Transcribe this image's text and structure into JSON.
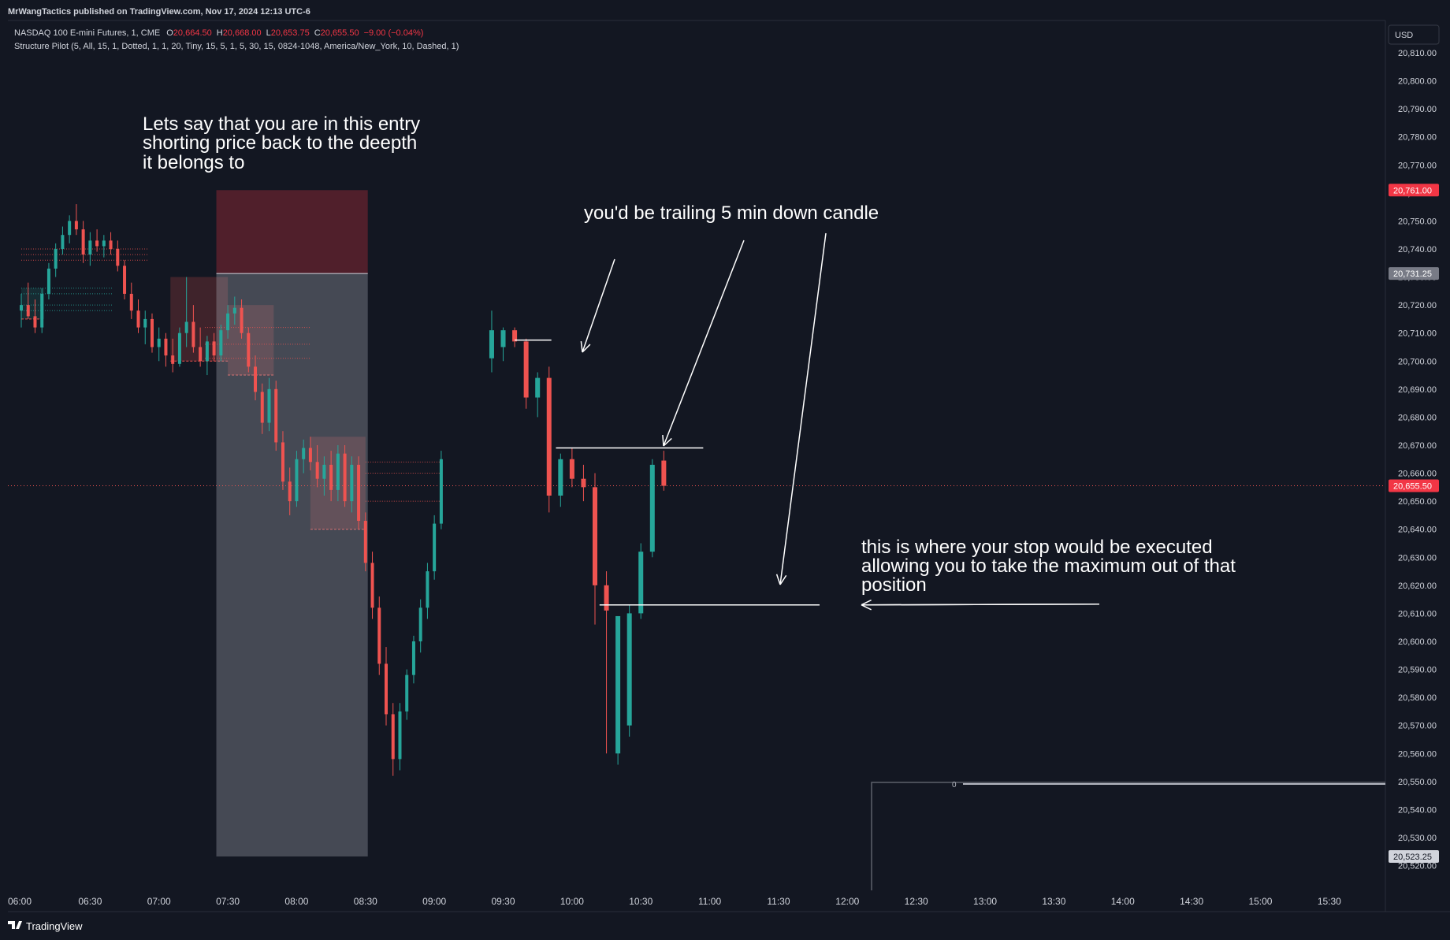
{
  "header": {
    "published": "MrWangTactics published on TradingView.com, Nov 17, 2024 12:13 UTC-6",
    "symbol": "NASDAQ 100 E-mini Futures, 1, CME",
    "o_label": "O",
    "o_value": "20,664.50",
    "h_label": "H",
    "h_value": "20,668.00",
    "l_label": "L",
    "l_value": "20,653.75",
    "c_label": "C",
    "c_value": "20,655.50",
    "change": "−9.00 (−0.04%)",
    "indicator": "Structure Pilot (5, All, 15, 1, Dotted, 1, 1, 20, Tiny, 15, 5, 1, 5, 30, 15, 0824-1048, America/New_York, 10, Dashed, 1)"
  },
  "currency": "USD",
  "footer": {
    "brand": "TradingView"
  },
  "colors": {
    "background": "#131722",
    "up": "#26a69a",
    "down": "#ef5350",
    "price_badge": "#f23645",
    "stop_badge": "#787b86",
    "annotation": "#ffffff"
  },
  "annotations": {
    "entry": [
      "Lets say that you are in this entry",
      "shorting price back to the deepth",
      "it belongs to"
    ],
    "trailing": "you'd be trailing 5 min down candle",
    "stop": [
      "this is where your stop would be executed",
      "allowing you to take the maximum out of that",
      "position"
    ]
  },
  "chart_data": {
    "type": "candlestick",
    "symbol": "NASDAQ 100 E-mini Futures",
    "timeframe": "1",
    "exchange": "CME",
    "y_axis": {
      "side": "right",
      "range": [
        20517,
        20815
      ],
      "tick_labels": [
        "20,810.00",
        "20,800.00",
        "20,790.00",
        "20,780.00",
        "20,770.00",
        "20,760.00",
        "20,750.00",
        "20,740.00",
        "20,730.00",
        "20,720.00",
        "20,710.00",
        "20,700.00",
        "20,690.00",
        "20,680.00",
        "20,670.00",
        "20,660.00",
        "20,650.00",
        "20,640.00",
        "20,630.00",
        "20,620.00",
        "20,610.00",
        "20,600.00",
        "20,590.00",
        "20,580.00",
        "20,570.00",
        "20,560.00",
        "20,550.00",
        "20,540.00",
        "20,530.00",
        "20,520.00"
      ]
    },
    "x_axis": {
      "tick_labels": [
        "06:00",
        "06:30",
        "07:00",
        "07:30",
        "08:00",
        "08:30",
        "09:00",
        "09:30",
        "10:00",
        "10:30",
        "11:00",
        "11:30",
        "12:00",
        "12:30",
        "13:00",
        "13:30",
        "14:00",
        "14:30",
        "15:00",
        "15:30"
      ]
    },
    "price_labels": [
      {
        "value": "20,761.00",
        "kind": "high"
      },
      {
        "value": "20,731.25",
        "kind": "stop"
      },
      {
        "value": "20,655.50",
        "kind": "last"
      },
      {
        "value": "20,523.25",
        "kind": "low"
      }
    ],
    "last_price": 20655.5,
    "short_position": {
      "entry": 20731.25,
      "stop": 20761.0,
      "target": 20523.25,
      "start": "07:25",
      "end": "08:31"
    },
    "stop_level": 20613,
    "trail_levels": [
      20707.5,
      20669
    ],
    "pane_marker": "0",
    "series_1m": [
      [
        "06:00",
        20718,
        20724,
        20712,
        20720
      ],
      [
        "06:03",
        20720,
        20728,
        20715,
        20716
      ],
      [
        "06:06",
        20716,
        20722,
        20710,
        20712
      ],
      [
        "06:09",
        20712,
        20726,
        20710,
        20724
      ],
      [
        "06:12",
        20724,
        20735,
        20722,
        20733
      ],
      [
        "06:15",
        20733,
        20742,
        20730,
        20740
      ],
      [
        "06:18",
        20740,
        20748,
        20738,
        20745
      ],
      [
        "06:21",
        20745,
        20752,
        20742,
        20750
      ],
      [
        "06:24",
        20750,
        20756,
        20745,
        20747
      ],
      [
        "06:27",
        20747,
        20750,
        20735,
        20738
      ],
      [
        "06:30",
        20738,
        20746,
        20734,
        20743
      ],
      [
        "06:33",
        20743,
        20747,
        20739,
        20741
      ],
      [
        "06:36",
        20741,
        20745,
        20737,
        20743
      ],
      [
        "06:39",
        20743,
        20746,
        20738,
        20740
      ],
      [
        "06:42",
        20740,
        20743,
        20732,
        20734
      ],
      [
        "06:45",
        20734,
        20736,
        20722,
        20724
      ],
      [
        "06:48",
        20724,
        20728,
        20715,
        20718
      ],
      [
        "06:51",
        20718,
        20722,
        20710,
        20712
      ],
      [
        "06:54",
        20712,
        20718,
        20706,
        20715
      ],
      [
        "06:57",
        20715,
        20717,
        20703,
        20705
      ],
      [
        "07:00",
        20705,
        20712,
        20700,
        20708
      ],
      [
        "07:03",
        20708,
        20710,
        20698,
        20702
      ],
      [
        "07:06",
        20702,
        20708,
        20696,
        20699
      ],
      [
        "07:09",
        20699,
        20712,
        20698,
        20710
      ],
      [
        "07:12",
        20710,
        20730,
        20705,
        20714
      ],
      [
        "07:15",
        20714,
        20720,
        20703,
        20705
      ],
      [
        "07:18",
        20705,
        20712,
        20698,
        20700
      ],
      [
        "07:21",
        20700,
        20709,
        20695,
        20707
      ],
      [
        "07:24",
        20707,
        20710,
        20700,
        20702
      ],
      [
        "07:27",
        20702,
        20713,
        20700,
        20711
      ],
      [
        "07:30",
        20711,
        20720,
        20708,
        20717
      ],
      [
        "07:33",
        20717,
        20723,
        20713,
        20719
      ],
      [
        "07:36",
        20719,
        20722,
        20708,
        20710
      ],
      [
        "07:39",
        20710,
        20712,
        20696,
        20698
      ],
      [
        "07:42",
        20698,
        20702,
        20686,
        20689
      ],
      [
        "07:45",
        20689,
        20692,
        20674,
        20678
      ],
      [
        "07:48",
        20678,
        20694,
        20675,
        20690
      ],
      [
        "07:51",
        20690,
        20693,
        20668,
        20671
      ],
      [
        "07:54",
        20671,
        20675,
        20654,
        20657
      ],
      [
        "07:57",
        20657,
        20662,
        20645,
        20650
      ],
      [
        "08:00",
        20650,
        20668,
        20648,
        20665
      ],
      [
        "08:03",
        20665,
        20672,
        20660,
        20669
      ],
      [
        "08:06",
        20669,
        20673,
        20661,
        20664
      ],
      [
        "08:09",
        20664,
        20670,
        20655,
        20658
      ],
      [
        "08:12",
        20658,
        20666,
        20652,
        20663
      ],
      [
        "08:15",
        20663,
        20668,
        20650,
        20654
      ],
      [
        "08:18",
        20654,
        20670,
        20650,
        20667
      ],
      [
        "08:21",
        20667,
        20670,
        20648,
        20650
      ],
      [
        "08:24",
        20650,
        20666,
        20646,
        20663
      ],
      [
        "08:27",
        20663,
        20666,
        20640,
        20643
      ],
      [
        "08:30",
        20643,
        20646,
        20625,
        20628
      ],
      [
        "08:33",
        20628,
        20632,
        20608,
        20612
      ],
      [
        "08:36",
        20612,
        20616,
        20588,
        20592
      ],
      [
        "08:39",
        20592,
        20598,
        20570,
        20574
      ],
      [
        "08:42",
        20574,
        20578,
        20552,
        20558
      ],
      [
        "08:45",
        20558,
        20578,
        20554,
        20575
      ],
      [
        "08:48",
        20575,
        20590,
        20572,
        20588
      ],
      [
        "08:51",
        20588,
        20602,
        20585,
        20600
      ],
      [
        "08:54",
        20600,
        20615,
        20596,
        20612
      ],
      [
        "08:57",
        20612,
        20628,
        20608,
        20625
      ],
      [
        "09:00",
        20625,
        20645,
        20622,
        20642
      ],
      [
        "09:03",
        20642,
        20668,
        20640,
        20665
      ]
    ],
    "series_5m": [
      [
        "09:25",
        20701,
        20718,
        20696,
        20711
      ],
      [
        "09:30",
        20705,
        20712,
        20700,
        20711
      ],
      [
        "09:35",
        20711,
        20712,
        20705,
        20707
      ],
      [
        "09:40",
        20707,
        20708,
        20683,
        20687
      ],
      [
        "09:45",
        20687,
        20696,
        20680,
        20694
      ],
      [
        "09:50",
        20694,
        20698,
        20646,
        20652
      ],
      [
        "09:55",
        20652,
        20667,
        20648,
        20665
      ],
      [
        "10:00",
        20665,
        20669,
        20655,
        20658
      ],
      [
        "10:05",
        20658,
        20663,
        20650,
        20655
      ],
      [
        "10:10",
        20655,
        20660,
        20606,
        20620
      ],
      [
        "10:15",
        20620,
        20625,
        20560,
        20611
      ],
      [
        "10:20",
        20560,
        20609,
        20556,
        20609
      ],
      [
        "10:25",
        20570,
        20613,
        20566,
        20610
      ],
      [
        "10:30",
        20610,
        20635,
        20608,
        20632
      ],
      [
        "10:35",
        20632,
        20665,
        20630,
        20663
      ],
      [
        "10:40",
        20664.5,
        20668,
        20653.75,
        20655.5
      ]
    ]
  }
}
